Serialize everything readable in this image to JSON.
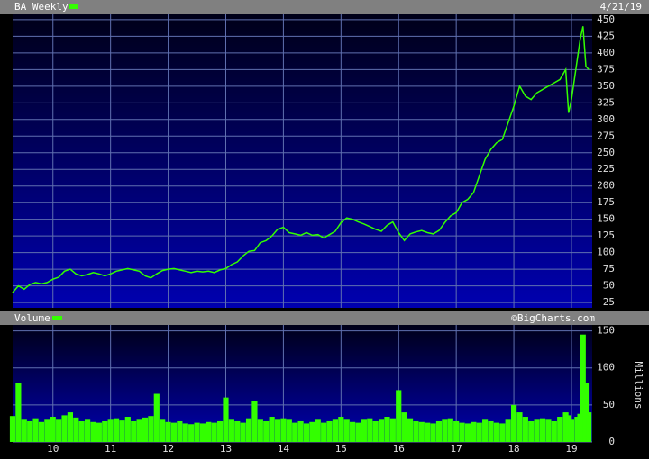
{
  "chart_data": [
    {
      "type": "line",
      "title": "BA Weekly",
      "date_label": "4/21/19",
      "color": "#33ff00",
      "x": [
        2009.3,
        2009.4,
        2009.5,
        2009.6,
        2009.7,
        2009.8,
        2009.9,
        2010.0,
        2010.1,
        2010.2,
        2010.3,
        2010.4,
        2010.5,
        2010.6,
        2010.7,
        2010.8,
        2010.9,
        2011.0,
        2011.1,
        2011.2,
        2011.3,
        2011.4,
        2011.5,
        2011.6,
        2011.7,
        2011.8,
        2011.9,
        2012.0,
        2012.1,
        2012.2,
        2012.3,
        2012.4,
        2012.5,
        2012.6,
        2012.7,
        2012.8,
        2012.9,
        2013.0,
        2013.1,
        2013.2,
        2013.3,
        2013.4,
        2013.5,
        2013.6,
        2013.7,
        2013.8,
        2013.9,
        2014.0,
        2014.1,
        2014.2,
        2014.3,
        2014.4,
        2014.5,
        2014.6,
        2014.7,
        2014.8,
        2014.9,
        2015.0,
        2015.1,
        2015.2,
        2015.3,
        2015.4,
        2015.5,
        2015.6,
        2015.7,
        2015.8,
        2015.9,
        2016.0,
        2016.1,
        2016.2,
        2016.3,
        2016.4,
        2016.5,
        2016.6,
        2016.7,
        2016.8,
        2016.9,
        2017.0,
        2017.1,
        2017.2,
        2017.3,
        2017.4,
        2017.5,
        2017.6,
        2017.7,
        2017.8,
        2017.9,
        2018.0,
        2018.1,
        2018.2,
        2018.3,
        2018.4,
        2018.5,
        2018.6,
        2018.7,
        2018.8,
        2018.9,
        2018.95,
        2019.0,
        2019.1,
        2019.15,
        2019.2,
        2019.25,
        2019.3
      ],
      "values": [
        40,
        50,
        45,
        52,
        55,
        53,
        55,
        60,
        63,
        72,
        75,
        68,
        65,
        67,
        70,
        68,
        65,
        68,
        72,
        74,
        76,
        74,
        72,
        65,
        62,
        68,
        73,
        75,
        76,
        74,
        72,
        70,
        72,
        71,
        72,
        70,
        74,
        76,
        82,
        86,
        95,
        102,
        103,
        115,
        118,
        125,
        135,
        138,
        130,
        128,
        126,
        130,
        126,
        127,
        122,
        127,
        132,
        145,
        152,
        150,
        146,
        143,
        139,
        135,
        132,
        141,
        146,
        130,
        118,
        128,
        131,
        133,
        130,
        128,
        133,
        145,
        155,
        160,
        175,
        180,
        190,
        215,
        240,
        255,
        265,
        270,
        295,
        320,
        350,
        335,
        330,
        340,
        345,
        350,
        355,
        360,
        375,
        310,
        330,
        390,
        420,
        440,
        380,
        375
      ],
      "xlim": [
        2009.3,
        2019.36
      ],
      "ylim": [
        17,
        458
      ],
      "yticks": [
        25,
        50,
        75,
        100,
        125,
        150,
        175,
        200,
        225,
        250,
        275,
        300,
        325,
        350,
        375,
        400,
        425,
        450
      ],
      "grid": true
    },
    {
      "type": "bar",
      "title": "Volume",
      "source": "©BigCharts.com",
      "ylabel": "Millions",
      "color": "#33ff00",
      "x": [
        2009.3,
        2009.4,
        2009.5,
        2009.6,
        2009.7,
        2009.8,
        2009.9,
        2010.0,
        2010.1,
        2010.2,
        2010.3,
        2010.4,
        2010.5,
        2010.6,
        2010.7,
        2010.8,
        2010.9,
        2011.0,
        2011.1,
        2011.2,
        2011.3,
        2011.4,
        2011.5,
        2011.6,
        2011.7,
        2011.8,
        2011.9,
        2012.0,
        2012.1,
        2012.2,
        2012.3,
        2012.4,
        2012.5,
        2012.6,
        2012.7,
        2012.8,
        2012.9,
        2013.0,
        2013.1,
        2013.2,
        2013.3,
        2013.4,
        2013.5,
        2013.6,
        2013.7,
        2013.8,
        2013.9,
        2014.0,
        2014.1,
        2014.2,
        2014.3,
        2014.4,
        2014.5,
        2014.6,
        2014.7,
        2014.8,
        2014.9,
        2015.0,
        2015.1,
        2015.2,
        2015.3,
        2015.4,
        2015.5,
        2015.6,
        2015.7,
        2015.8,
        2015.9,
        2016.0,
        2016.1,
        2016.2,
        2016.3,
        2016.4,
        2016.5,
        2016.6,
        2016.7,
        2016.8,
        2016.9,
        2017.0,
        2017.1,
        2017.2,
        2017.3,
        2017.4,
        2017.5,
        2017.6,
        2017.7,
        2017.8,
        2017.9,
        2018.0,
        2018.1,
        2018.2,
        2018.3,
        2018.4,
        2018.5,
        2018.6,
        2018.7,
        2018.8,
        2018.9,
        2018.95,
        2019.0,
        2019.1,
        2019.15,
        2019.2,
        2019.25,
        2019.3
      ],
      "values": [
        35,
        80,
        30,
        28,
        32,
        27,
        30,
        34,
        30,
        36,
        40,
        33,
        28,
        30,
        27,
        26,
        28,
        30,
        32,
        29,
        34,
        28,
        30,
        33,
        35,
        65,
        30,
        27,
        26,
        28,
        25,
        24,
        26,
        25,
        27,
        26,
        28,
        60,
        30,
        28,
        26,
        32,
        55,
        30,
        28,
        34,
        30,
        32,
        30,
        26,
        28,
        25,
        27,
        30,
        26,
        28,
        30,
        34,
        30,
        27,
        26,
        30,
        32,
        28,
        30,
        34,
        32,
        70,
        40,
        32,
        28,
        27,
        26,
        25,
        28,
        30,
        32,
        28,
        26,
        25,
        27,
        26,
        30,
        28,
        26,
        25,
        30,
        50,
        40,
        34,
        28,
        30,
        32,
        30,
        28,
        34,
        40,
        36,
        30,
        34,
        38,
        145,
        80,
        40
      ],
      "xlim": [
        2009.3,
        2019.36
      ],
      "ylim": [
        0,
        158
      ],
      "yticks": [
        0,
        50,
        100,
        150
      ],
      "xticks": [
        {
          "value": 2010,
          "label": "10"
        },
        {
          "value": 2011,
          "label": "11"
        },
        {
          "value": 2012,
          "label": "12"
        },
        {
          "value": 2013,
          "label": "13"
        },
        {
          "value": 2014,
          "label": "14"
        },
        {
          "value": 2015,
          "label": "15"
        },
        {
          "value": 2016,
          "label": "16"
        },
        {
          "value": 2017,
          "label": "17"
        },
        {
          "value": 2018,
          "label": "18"
        },
        {
          "value": 2019,
          "label": "19"
        }
      ]
    }
  ]
}
